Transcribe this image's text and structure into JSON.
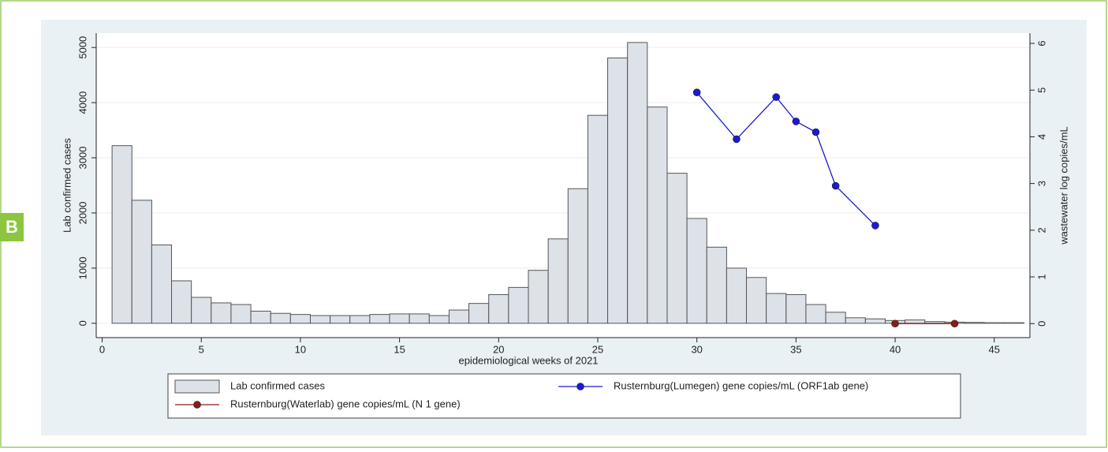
{
  "chart_data": {
    "type": "bar",
    "panel_label": "B",
    "xlabel": "epidemiological weeks of 2021",
    "ylabel": "Lab confirmed cases",
    "y2label": "wastewater log copies/mL",
    "xlim": [
      -0.3,
      46.8
    ],
    "xticks": [
      0,
      5,
      10,
      15,
      20,
      25,
      30,
      35,
      40,
      45
    ],
    "ylim": [
      -260,
      5260
    ],
    "yticks": [
      0,
      1000,
      2000,
      3000,
      4000,
      5000
    ],
    "y2lim": [
      -0.3,
      6.22
    ],
    "y2ticks": [
      0,
      1,
      2,
      3,
      4,
      5,
      6
    ],
    "grid": true,
    "series": [
      {
        "name": "Lab confirmed cases",
        "type": "bar",
        "color": "#dde1e8",
        "x": [
          1,
          2,
          3,
          4,
          5,
          6,
          7,
          8,
          9,
          10,
          11,
          12,
          13,
          14,
          15,
          16,
          17,
          18,
          19,
          20,
          21,
          22,
          23,
          24,
          25,
          26,
          27,
          28,
          29,
          30,
          31,
          32,
          33,
          34,
          35,
          36,
          37,
          38,
          39,
          40,
          41,
          42,
          43,
          44,
          45,
          46
        ],
        "values": [
          3220,
          2230,
          1420,
          770,
          470,
          370,
          340,
          220,
          180,
          160,
          140,
          140,
          140,
          160,
          170,
          170,
          140,
          240,
          360,
          520,
          650,
          960,
          1530,
          2440,
          3770,
          4810,
          5090,
          3920,
          2720,
          1900,
          1380,
          1000,
          830,
          540,
          520,
          340,
          200,
          100,
          80,
          50,
          60,
          30,
          20,
          15,
          10,
          10
        ]
      },
      {
        "name": "Rusternburg(Lumegen) gene copies/mL (ORF1ab gene)",
        "type": "line",
        "axis": "y2",
        "color": "#1a1ad6",
        "x": [
          30,
          32,
          34,
          35,
          36,
          37,
          39
        ],
        "values": [
          4.95,
          3.95,
          4.85,
          4.33,
          4.1,
          2.95,
          2.1
        ]
      },
      {
        "name": "Rusternburg(Waterlab) gene copies/mL (N 1 gene)",
        "type": "line",
        "axis": "y2",
        "color": "#8b1a1a",
        "x": [
          40,
          43
        ],
        "values": [
          0,
          0
        ]
      }
    ]
  }
}
